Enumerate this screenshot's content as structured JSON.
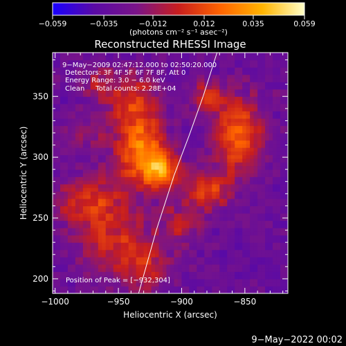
{
  "chart_data": {
    "type": "heatmap",
    "title": "Reconstructed RHESSI Image",
    "xlabel": "Heliocentric X (arcsec)",
    "ylabel": "Heliocentric Y (arcsec)",
    "xlim": [
      -1002,
      -816
    ],
    "ylim": [
      188,
      386
    ],
    "x_ticks": [
      -1000,
      -950,
      -900,
      -850
    ],
    "x_tick_labels": [
      "−1000",
      "−950",
      "−900",
      "−850"
    ],
    "y_ticks": [
      200,
      250,
      300,
      350
    ],
    "y_tick_labels": [
      "200",
      "250",
      "300",
      "350"
    ],
    "colorbar": {
      "range": [
        -0.059,
        0.059
      ],
      "ticks": [
        -0.059,
        -0.035,
        -0.012,
        0.012,
        0.035,
        0.059
      ],
      "tick_labels": [
        "−0.059",
        "−0.035",
        "−0.012",
        "0.012",
        "0.035",
        "0.059"
      ],
      "units": "(photons cm⁻² s⁻¹ asec⁻²)",
      "colors": [
        "#1a00ff",
        "#5a0aa5",
        "#7a1488",
        "#c81e1e",
        "#ff6400",
        "#ffb400",
        "#ffffc8"
      ]
    },
    "annotations": [
      "9−May−2009 02:47:12.000 to 02:50:20.000",
      "Detectors: 3F 4F 5F 6F 7F 8F, Att 0",
      "Energy Range: 3.0 − 6.0 keV",
      "Clean     Total counts: 2.28E+04"
    ],
    "peak_label": "Position of Peak = [−932,304]",
    "peak_position": [
      -932,
      304
    ],
    "sources": [
      {
        "x": -932,
        "y": 304,
        "sx": 14,
        "sy": 20,
        "amp": 0.052
      },
      {
        "x": -915,
        "y": 290,
        "sx": 10,
        "sy": 10,
        "amp": 0.048
      },
      {
        "x": -938,
        "y": 345,
        "sx": 14,
        "sy": 16,
        "amp": 0.032
      },
      {
        "x": -880,
        "y": 272,
        "sx": 14,
        "sy": 12,
        "amp": 0.035
      },
      {
        "x": -855,
        "y": 318,
        "sx": 14,
        "sy": 22,
        "amp": 0.047
      },
      {
        "x": -880,
        "y": 350,
        "sx": 10,
        "sy": 10,
        "amp": 0.028
      },
      {
        "x": -972,
        "y": 263,
        "sx": 20,
        "sy": 16,
        "amp": 0.034
      },
      {
        "x": -950,
        "y": 225,
        "sx": 22,
        "sy": 20,
        "amp": 0.03
      },
      {
        "x": -975,
        "y": 320,
        "sx": 10,
        "sy": 10,
        "amp": 0.018
      },
      {
        "x": -900,
        "y": 245,
        "sx": 12,
        "sy": 12,
        "amp": 0.024
      },
      {
        "x": -965,
        "y": 362,
        "sx": 12,
        "sy": 12,
        "amp": 0.02
      },
      {
        "x": -925,
        "y": 205,
        "sx": 12,
        "sy": 14,
        "amp": 0.022
      }
    ],
    "background": -0.03,
    "limb_curve": [
      [
        -934,
        188
      ],
      [
        -920,
        240
      ],
      [
        -906,
        285
      ],
      [
        -894,
        318
      ],
      [
        -883,
        350
      ],
      [
        -872,
        386
      ]
    ]
  },
  "footer": {
    "date": "9−May−2022 00:02"
  }
}
